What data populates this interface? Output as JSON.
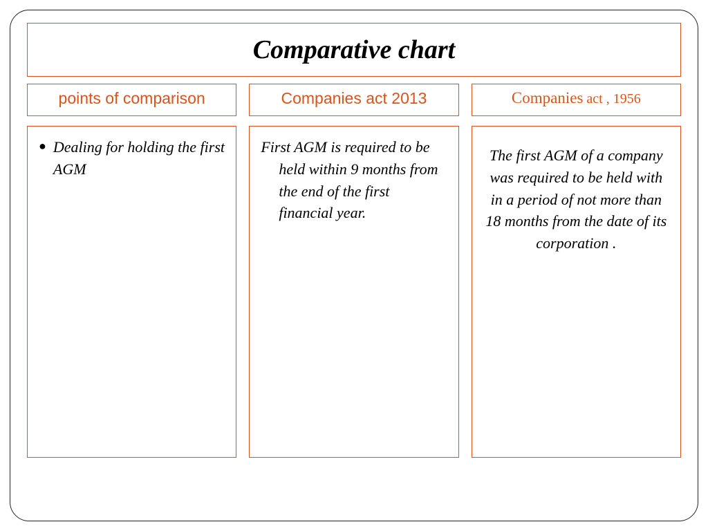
{
  "title": "Comparative chart",
  "border_color": "#d8541a",
  "frame_border_color": "#222222",
  "columns": [
    {
      "header": "points of comparison",
      "header_style": "sans",
      "body_style": "bullet",
      "body": "Dealing for holding the first AGM"
    },
    {
      "header": "Companies act 2013",
      "header_style": "sans",
      "body_style": "indent",
      "body": "First AGM is required to be held within 9 months from the end of the first financial year."
    },
    {
      "header_main": "Companies",
      "header_tail": " act , 1956",
      "header_style": "serif",
      "body_style": "center",
      "body": "The first AGM  of a company was required to be held with in a period of not more than 18 months from the date of its corporation ."
    }
  ]
}
